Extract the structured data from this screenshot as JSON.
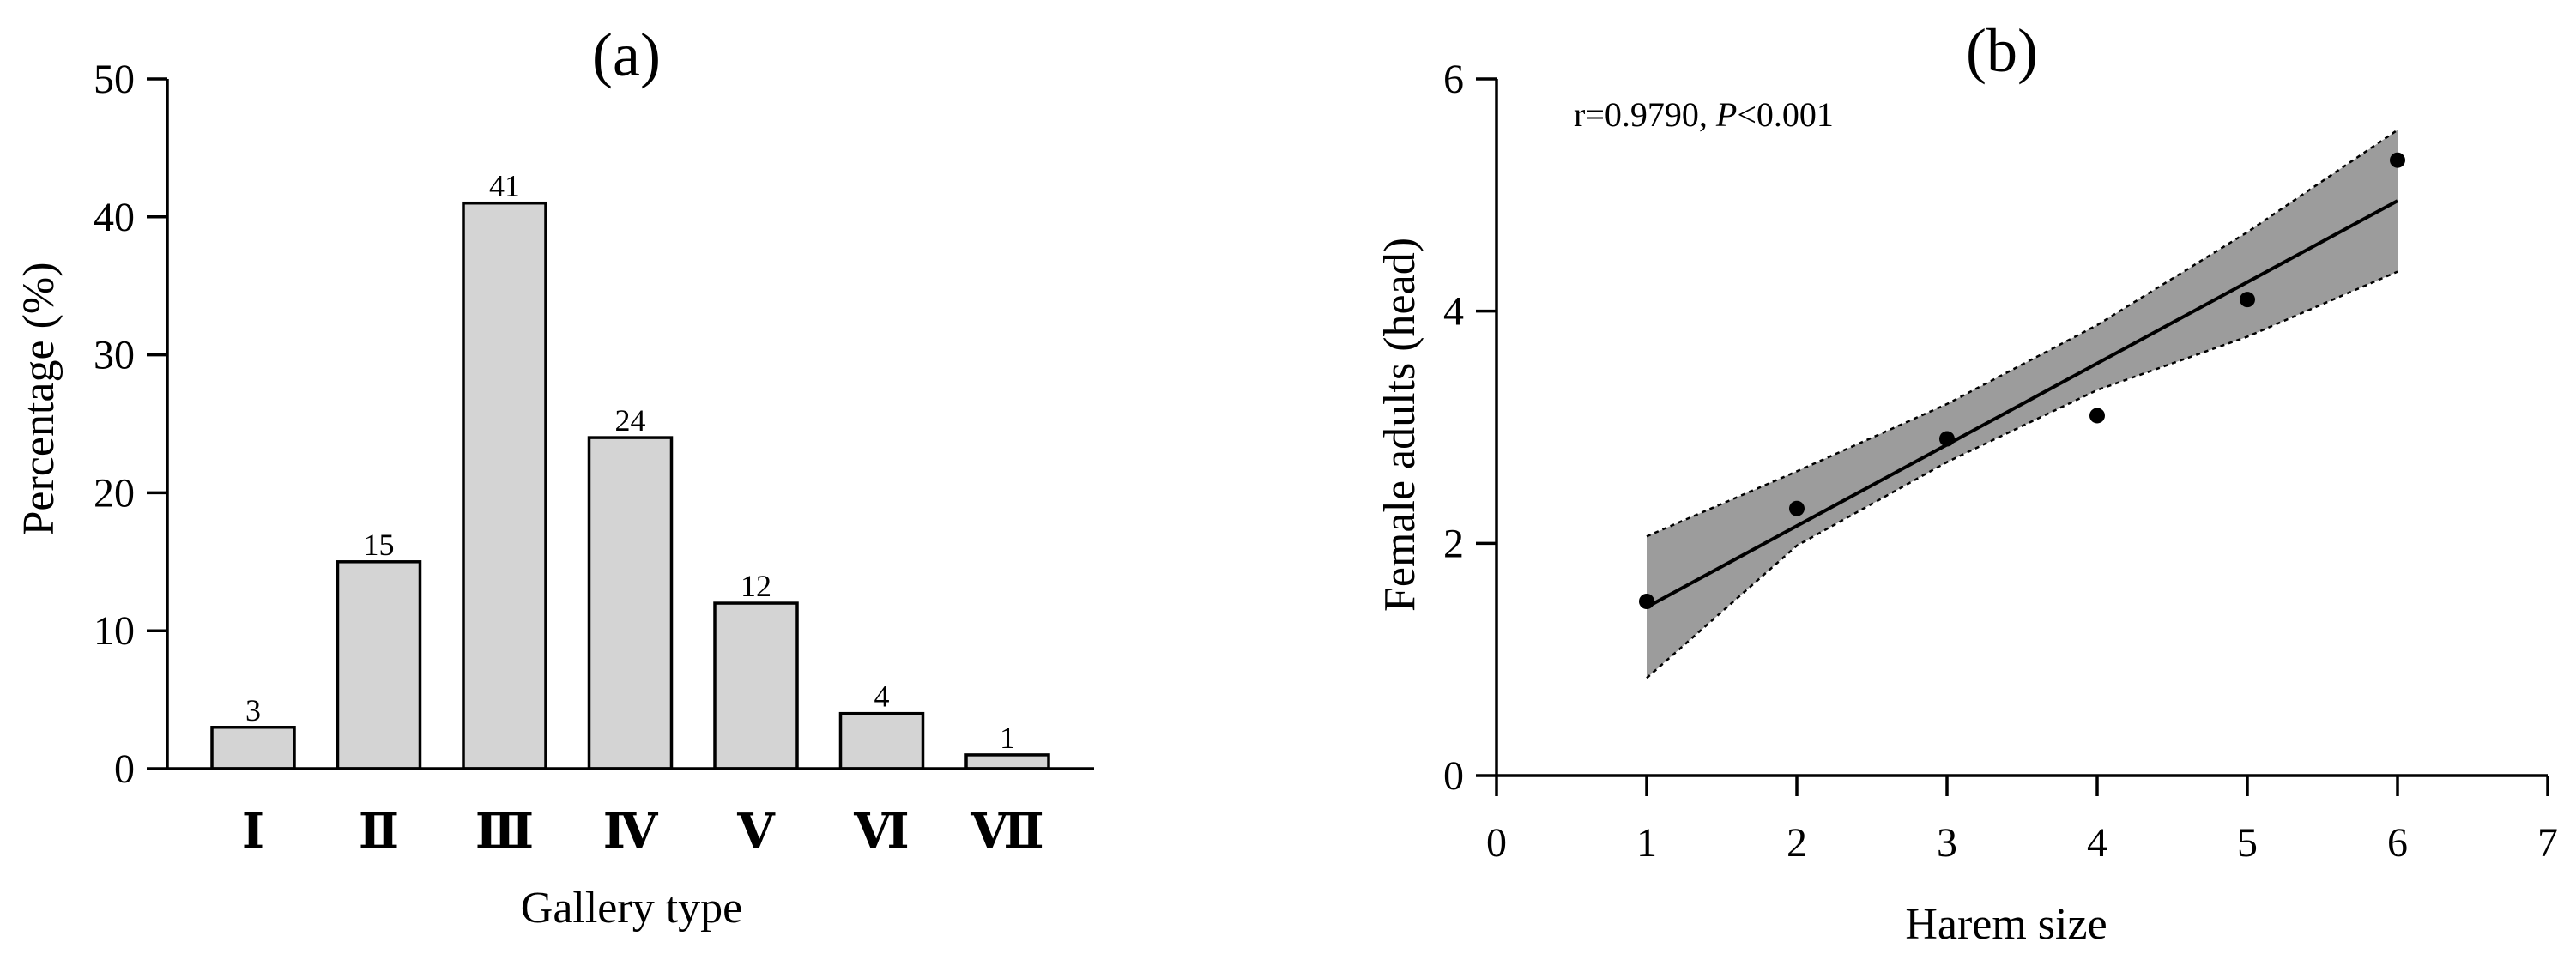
{
  "chart_data": [
    {
      "type": "bar",
      "panel_label": "(a)",
      "title": "",
      "xlabel": "Gallery type",
      "ylabel": "Percentage (%)",
      "categories": [
        "Ⅰ",
        "Ⅱ",
        "Ⅲ",
        "Ⅳ",
        "Ⅴ",
        "Ⅵ",
        "Ⅶ"
      ],
      "values": [
        3,
        15,
        41,
        24,
        12,
        4,
        1
      ],
      "data_labels": [
        "3",
        "15",
        "41",
        "24",
        "12",
        "4",
        "1"
      ],
      "ylim": [
        0,
        50
      ],
      "yticks": [
        0,
        10,
        20,
        30,
        40,
        50
      ],
      "ytick_labels": [
        "0",
        "10",
        "20",
        "30",
        "40",
        "50"
      ],
      "bar_color": "#d4d4d4",
      "grid": false,
      "legend": "none"
    },
    {
      "type": "scatter",
      "panel_label": "(b)",
      "title": "",
      "xlabel": "Harem size",
      "ylabel": "Female adults (head)",
      "annotation": {
        "prefix": "r=0.9790, ",
        "italic": "P",
        "suffix": "<0.001"
      },
      "points": {
        "x": [
          1,
          2,
          3,
          4,
          5,
          6
        ],
        "y": [
          1.5,
          2.3,
          2.9,
          3.1,
          4.1,
          5.3
        ]
      },
      "fit_line": {
        "x": [
          1,
          6
        ],
        "y": [
          1.45,
          4.95
        ]
      },
      "confidence_band": {
        "x": [
          1,
          2,
          3,
          4,
          5,
          6
        ],
        "upper": [
          2.06,
          2.62,
          3.2,
          3.88,
          4.68,
          5.56
        ],
        "lower": [
          0.84,
          1.98,
          2.7,
          3.32,
          3.78,
          4.34
        ]
      },
      "xlim": [
        0,
        7
      ],
      "ylim": [
        0,
        6
      ],
      "xticks": [
        0,
        1,
        2,
        3,
        4,
        5,
        6,
        7
      ],
      "xtick_labels": [
        "0",
        "1",
        "2",
        "3",
        "4",
        "5",
        "6",
        "7"
      ],
      "yticks": [
        0,
        2,
        4,
        6
      ],
      "ytick_labels": [
        "0",
        "2",
        "4",
        "6"
      ],
      "band_color": "#9c9c9c",
      "grid": false,
      "legend": "none"
    }
  ]
}
